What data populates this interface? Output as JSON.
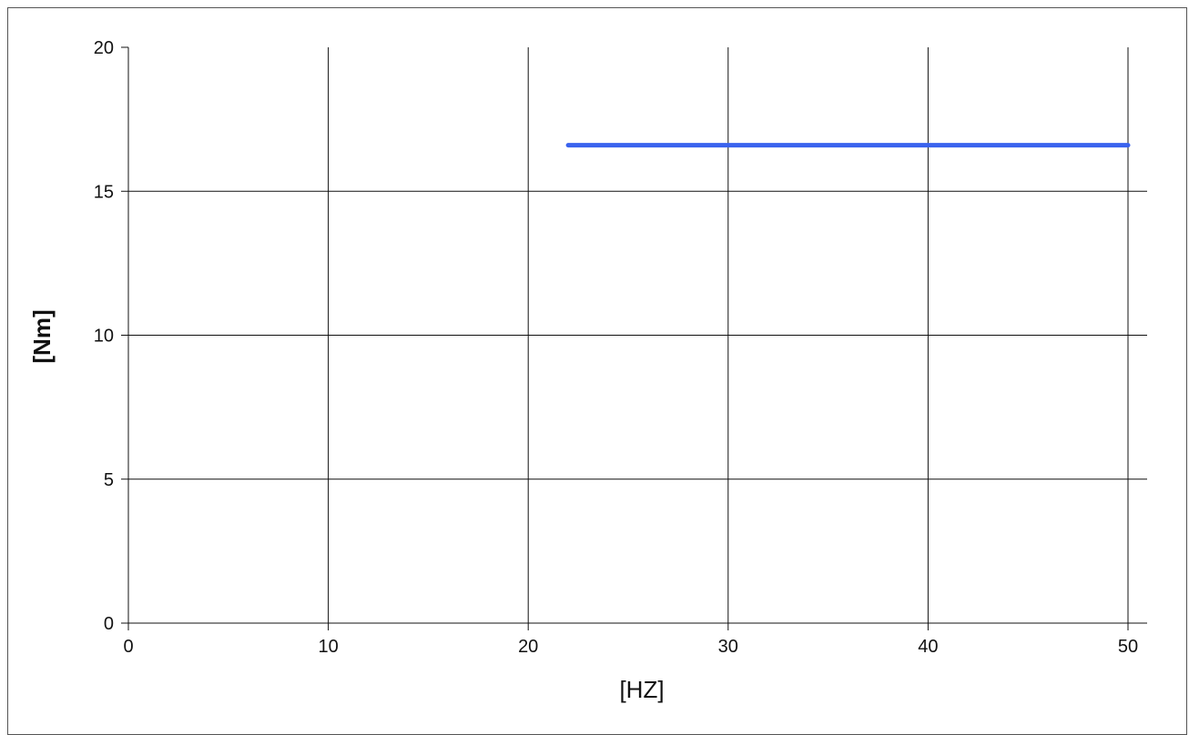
{
  "chart_data": {
    "type": "line",
    "xlabel": "[HZ]",
    "ylabel": "[Nm]",
    "xlim": [
      0,
      51
    ],
    "ylim": [
      0,
      20
    ],
    "xticks": [
      0,
      10,
      20,
      30,
      40,
      50
    ],
    "yticks": [
      0,
      5,
      10,
      15,
      20
    ],
    "grid": true,
    "series": [
      {
        "x": [
          22,
          50
        ],
        "y": [
          16.6,
          16.6
        ],
        "color": "#3a63ee"
      }
    ]
  }
}
